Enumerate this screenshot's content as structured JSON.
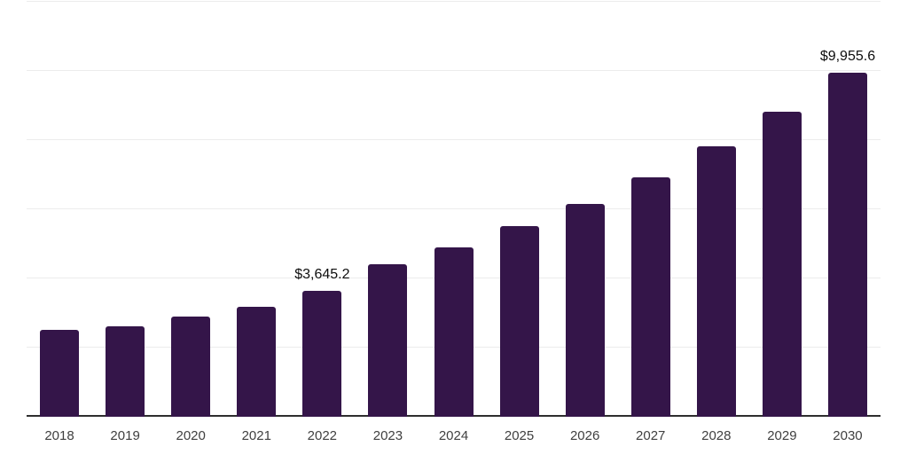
{
  "chart_data": {
    "type": "bar",
    "title": "",
    "xlabel": "",
    "ylabel": "",
    "categories": [
      "2018",
      "2019",
      "2020",
      "2021",
      "2022",
      "2023",
      "2024",
      "2025",
      "2026",
      "2027",
      "2028",
      "2029",
      "2030"
    ],
    "values": [
      2510,
      2620,
      2890,
      3170,
      3645.2,
      4410,
      4900,
      5510,
      6160,
      6920,
      7810,
      8810,
      9955.6
    ],
    "point_labels": [
      "",
      "",
      "",
      "",
      "$3,645.2",
      "",
      "",
      "",
      "",
      "",
      "",
      "",
      "$9,955.6"
    ],
    "ylim": [
      0,
      12000
    ],
    "gridline_step": 2000,
    "grid": "horizontal",
    "legend": "none",
    "y_axis_labels_visible": false,
    "bar_color": "#341549",
    "currency_unit": "$"
  }
}
